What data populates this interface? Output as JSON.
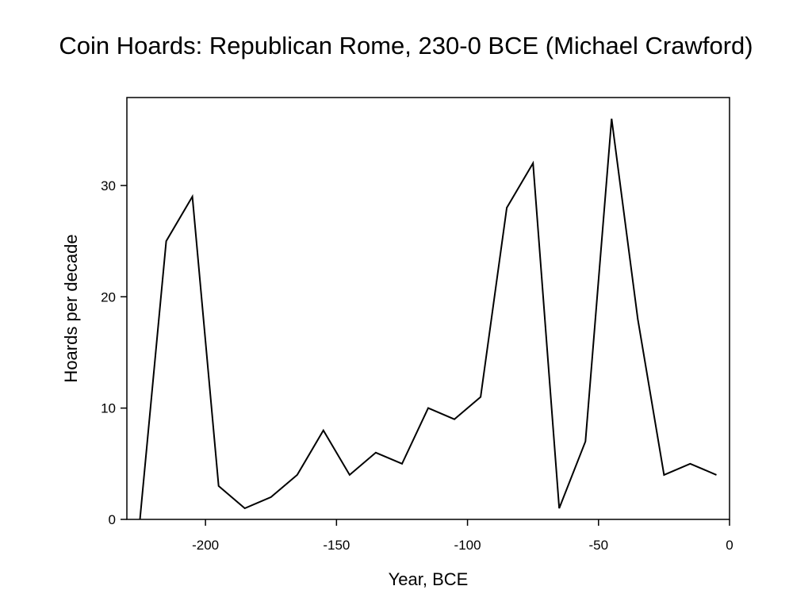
{
  "chart_data": {
    "type": "line",
    "title": "Coin Hoards: Republican Rome, 230-0 BCE (Michael Crawford)",
    "xlabel": "Year, BCE",
    "ylabel": "Hoards per decade",
    "xlim": [
      -230,
      0
    ],
    "ylim": [
      0,
      37.9
    ],
    "xticks": [
      -200,
      -150,
      -100,
      -50,
      0
    ],
    "yticks": [
      0,
      10,
      20,
      30
    ],
    "grid": false,
    "legend": "none",
    "line_color": "#000000",
    "series": [
      {
        "x": [
          -225,
          -215,
          -205,
          -195,
          -185,
          -175,
          -165,
          -155,
          -145,
          -135,
          -125,
          -115,
          -105,
          -95,
          -85,
          -75,
          -65,
          -55,
          -45,
          -35,
          -25,
          -15,
          -5
        ],
        "values": [
          0,
          25,
          29,
          3,
          1,
          2,
          4,
          8,
          4,
          6,
          5,
          10,
          9,
          11,
          28,
          32,
          1,
          7,
          36,
          18,
          4,
          5,
          4
        ]
      }
    ]
  }
}
